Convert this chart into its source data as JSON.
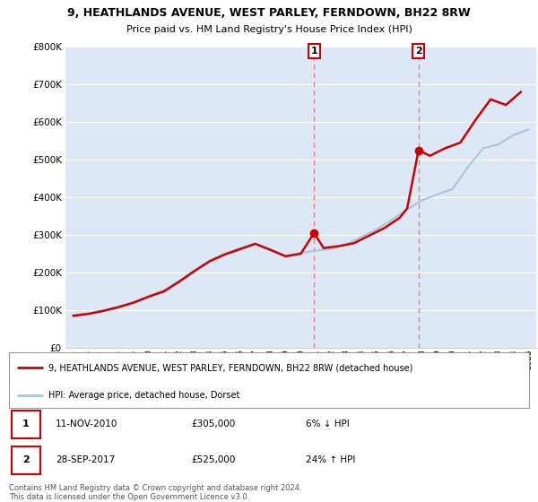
{
  "title1": "9, HEATHLANDS AVENUE, WEST PARLEY, FERNDOWN, BH22 8RW",
  "title2": "Price paid vs. HM Land Registry's House Price Index (HPI)",
  "legend_line1": "9, HEATHLANDS AVENUE, WEST PARLEY, FERNDOWN, BH22 8RW (detached house)",
  "legend_line2": "HPI: Average price, detached house, Dorset",
  "sale1_date": "11-NOV-2010",
  "sale1_price": "£305,000",
  "sale1_hpi": "6% ↓ HPI",
  "sale2_date": "28-SEP-2017",
  "sale2_price": "£525,000",
  "sale2_hpi": "24% ↑ HPI",
  "footnote": "Contains HM Land Registry data © Crown copyright and database right 2024.\nThis data is licensed under the Open Government Licence v3.0.",
  "property_color": "#cc0000",
  "hpi_color": "#aac4dd",
  "vline_color": "#e88080",
  "plot_bg_color": "#dce8f5",
  "ylim": [
    0,
    800000
  ],
  "xlim_start": 1994.5,
  "xlim_end": 2025.5,
  "sale1_year": 2010.87,
  "sale1_value": 305000,
  "sale2_year": 2017.75,
  "sale2_value": 525000,
  "hpi_years": [
    1995,
    1996,
    1997,
    1998,
    1999,
    2000,
    2001,
    2002,
    2003,
    2004,
    2005,
    2006,
    2007,
    2008,
    2009,
    2010,
    2011,
    2012,
    2013,
    2014,
    2015,
    2016,
    2017,
    2018,
    2019,
    2020,
    2021,
    2022,
    2023,
    2024,
    2025
  ],
  "hpi_values": [
    87000,
    92000,
    100000,
    110000,
    122000,
    138000,
    153000,
    178000,
    206000,
    232000,
    250000,
    265000,
    278000,
    262000,
    245000,
    252000,
    258000,
    263000,
    275000,
    295000,
    315000,
    340000,
    368000,
    392000,
    408000,
    422000,
    480000,
    530000,
    540000,
    565000,
    580000
  ],
  "property_years": [
    1995.0,
    1996.0,
    1997.0,
    1998.0,
    1999.0,
    2000.0,
    2001.0,
    2002.0,
    2003.0,
    2004.0,
    2005.0,
    2006.0,
    2007.0,
    2008.0,
    2009.0,
    2010.0,
    2010.87,
    2011.5,
    2012.5,
    2013.5,
    2014.5,
    2015.5,
    2016.5,
    2017.0,
    2017.75,
    2018.5,
    2019.5,
    2020.5,
    2021.5,
    2022.5,
    2023.5,
    2024.5
  ],
  "property_values": [
    85000,
    90000,
    98000,
    108000,
    120000,
    136000,
    150000,
    176000,
    204000,
    230000,
    248000,
    262000,
    276000,
    260000,
    243000,
    250000,
    305000,
    265000,
    270000,
    278000,
    298000,
    318000,
    345000,
    370000,
    525000,
    510000,
    530000,
    545000,
    605000,
    660000,
    645000,
    680000
  ],
  "xtick_years": [
    1995,
    1996,
    1997,
    1998,
    1999,
    2000,
    2001,
    2002,
    2003,
    2004,
    2005,
    2006,
    2007,
    2008,
    2009,
    2010,
    2011,
    2012,
    2013,
    2014,
    2015,
    2016,
    2017,
    2018,
    2019,
    2020,
    2021,
    2022,
    2023,
    2024,
    2025
  ]
}
